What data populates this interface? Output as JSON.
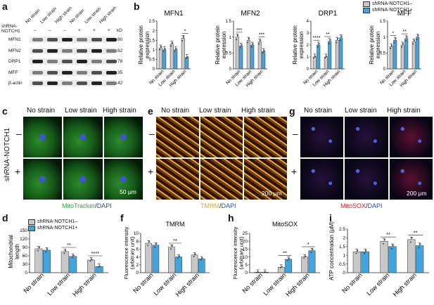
{
  "panel_letters": [
    "a",
    "b",
    "c",
    "d",
    "e",
    "f",
    "g",
    "h",
    "i"
  ],
  "western_blot": {
    "conditions": [
      "No strain",
      "Low strain",
      "High strain",
      "No strain",
      "Low strain",
      "High strain"
    ],
    "shrna_label": "shRNA-NOTCH1",
    "shrna_signs": [
      "–",
      "–",
      "–",
      "+",
      "+",
      "+"
    ],
    "kd_label": "kD",
    "proteins": [
      {
        "name": "MFN1",
        "kd": "80"
      },
      {
        "name": "MFN2",
        "kd": "82"
      },
      {
        "name": "DRP1",
        "kd": "78"
      },
      {
        "name": "MFF",
        "kd": "35"
      },
      {
        "name": "β-actin",
        "kd": "42"
      }
    ]
  },
  "legend": {
    "minus": "shRNA-NOTCH1–",
    "plus": "shRNA-NOTCH1+",
    "color_minus": "#c8c8c8",
    "color_plus": "#3fa4e0"
  },
  "microscopy": {
    "c": {
      "cols": [
        "No strain",
        "Low strain",
        "High strain"
      ],
      "row_title": "shRNA-NOTCH1",
      "row_signs": [
        "–",
        "+"
      ],
      "scalebar": "50 μm",
      "caption_a": "MitoTracker",
      "caption_sep": "/",
      "caption_b": "DAPI",
      "caption_color": "#2eaa3a"
    },
    "e": {
      "cols": [
        "No strain",
        "Low strain",
        "High strain"
      ],
      "row_signs": [
        "–",
        "+"
      ],
      "scalebar": "200 μm",
      "caption_a": "TMRM",
      "caption_sep": "/",
      "caption_b": "DAPI",
      "caption_color": "#f0a020"
    },
    "g": {
      "cols": [
        "No strain",
        "Low strain",
        "High strain"
      ],
      "row_signs": [
        "–",
        "+"
      ],
      "scalebar": "200 μm",
      "caption_a": "MitoSOX",
      "caption_sep": "/",
      "caption_b": "DAPI",
      "caption_color": "#d02020"
    }
  },
  "chart_data": [
    {
      "id": "b-mfn1",
      "type": "bar",
      "title": "MFN1",
      "ylabel": "Relative protein expression",
      "categories": [
        "No strain",
        "Low strain",
        "High strain"
      ],
      "ylim": [
        0,
        2.5
      ],
      "yticks": [
        0,
        0.5,
        1.0,
        1.5,
        2.0,
        2.5
      ],
      "series": [
        {
          "name": "shRNA-NOTCH1–",
          "values": [
            1.1,
            1.3,
            1.6
          ]
        },
        {
          "name": "shRNA-NOTCH1+",
          "values": [
            1.0,
            1.0,
            0.6
          ]
        }
      ],
      "significance": [
        {
          "category": "High strain",
          "label": "*"
        }
      ]
    },
    {
      "id": "b-mfn2",
      "type": "bar",
      "title": "MFN2",
      "ylabel": "Relative protein expression",
      "categories": [
        "No strain",
        "Low strain",
        "High strain"
      ],
      "ylim": [
        0,
        1.5
      ],
      "yticks": [
        0,
        0.5,
        1.0,
        1.5
      ],
      "series": [
        {
          "name": "shRNA-NOTCH1–",
          "values": [
            1.0,
            0.9,
            0.85
          ]
        },
        {
          "name": "shRNA-NOTCH1+",
          "values": [
            0.72,
            0.75,
            0.55
          ]
        }
      ],
      "significance": [
        {
          "category": "No strain",
          "label": "***"
        },
        {
          "category": "High strain",
          "label": "***"
        }
      ]
    },
    {
      "id": "b-drp1",
      "type": "bar",
      "title": "DRP1",
      "ylabel": "Relative protein expression",
      "categories": [
        "No strain",
        "Low strain",
        "High strain"
      ],
      "ylim": [
        0,
        4.0
      ],
      "yticks": [
        0,
        1.0,
        2.0,
        3.0,
        4.0
      ],
      "series": [
        {
          "name": "shRNA-NOTCH1–",
          "values": [
            1.0,
            1.0,
            2.4
          ]
        },
        {
          "name": "shRNA-NOTCH1+",
          "values": [
            2.0,
            2.3,
            2.6
          ]
        }
      ],
      "significance": [
        {
          "category": "No strain",
          "label": "****"
        },
        {
          "category": "Low strain",
          "label": "**"
        }
      ]
    },
    {
      "id": "b-mff",
      "type": "bar",
      "title": "MFF",
      "ylabel": "Relative protein expression",
      "categories": [
        "No strain",
        "Low strain",
        "High strain"
      ],
      "ylim": [
        0,
        1.5
      ],
      "yticks": [
        0,
        0.5,
        1.0,
        1.5
      ],
      "series": [
        {
          "name": "shRNA-NOTCH1–",
          "values": [
            0.7,
            0.75,
            0.85
          ]
        },
        {
          "name": "shRNA-NOTCH1+",
          "values": [
            0.9,
            0.95,
            1.0
          ]
        }
      ],
      "significance": [
        {
          "category": "No strain",
          "label": "*"
        },
        {
          "category": "Low strain",
          "label": "**"
        }
      ]
    },
    {
      "id": "d",
      "type": "bar",
      "title": "",
      "ylabel": "Mitochondrial length",
      "categories": [
        "No strain",
        "Low strain",
        "High strain"
      ],
      "ylim": [
        0,
        150
      ],
      "yticks": [
        0,
        30,
        60,
        90,
        120,
        150
      ],
      "series": [
        {
          "name": "shRNA-NOTCH1–",
          "values": [
            85,
            75,
            45
          ]
        },
        {
          "name": "shRNA-NOTCH1+",
          "values": [
            80,
            58,
            22
          ]
        }
      ],
      "significance": [
        {
          "category": "Low strain",
          "label": "**"
        },
        {
          "category": "High strain",
          "label": "****"
        }
      ]
    },
    {
      "id": "f",
      "type": "bar",
      "title": "TMRM",
      "ylabel": "Fluorescence intensity (arbitrary unit)",
      "categories": [
        "No strain",
        "Low strain",
        "High strain"
      ],
      "ylim": [
        0,
        10
      ],
      "yticks": [
        0,
        2,
        4,
        6,
        8,
        10
      ],
      "series": [
        {
          "name": "shRNA-NOTCH1–",
          "values": [
            7.5,
            6.5,
            4.5
          ]
        },
        {
          "name": "shRNA-NOTCH1+",
          "values": [
            7.0,
            4.0,
            3.5
          ]
        }
      ],
      "significance": [
        {
          "category": "Low strain",
          "label": "**"
        }
      ]
    },
    {
      "id": "h",
      "type": "bar",
      "title": "MitoSOX",
      "ylabel": "Fluorescence intensity (arbitrary unit)",
      "categories": [
        "No strain",
        "Low strain",
        "High strain"
      ],
      "ylim": [
        0,
        25
      ],
      "yticks": [
        0,
        5,
        10,
        15,
        20,
        25
      ],
      "series": [
        {
          "name": "shRNA-NOTCH1–",
          "values": [
            0.3,
            3.5,
            10
          ]
        },
        {
          "name": "shRNA-NOTCH1+",
          "values": [
            0.3,
            8.5,
            14
          ]
        }
      ],
      "significance": [
        {
          "category": "Low strain",
          "label": "**"
        },
        {
          "category": "High strain",
          "label": "*"
        }
      ]
    },
    {
      "id": "i",
      "type": "bar",
      "title": "",
      "ylabel": "ATP concentration (μM)",
      "categories": [
        "No strain",
        "Low strain",
        "High strain"
      ],
      "ylim": [
        0,
        2.5
      ],
      "yticks": [
        0,
        0.5,
        1.0,
        1.5,
        2.0,
        2.5
      ],
      "series": [
        {
          "name": "shRNA-NOTCH1–",
          "values": [
            1.2,
            1.8,
            1.9
          ]
        },
        {
          "name": "shRNA-NOTCH1+",
          "values": [
            1.2,
            1.5,
            1.55
          ]
        }
      ],
      "significance": [
        {
          "category": "Low strain",
          "label": "**"
        },
        {
          "category": "High strain",
          "label": "**"
        }
      ]
    }
  ]
}
